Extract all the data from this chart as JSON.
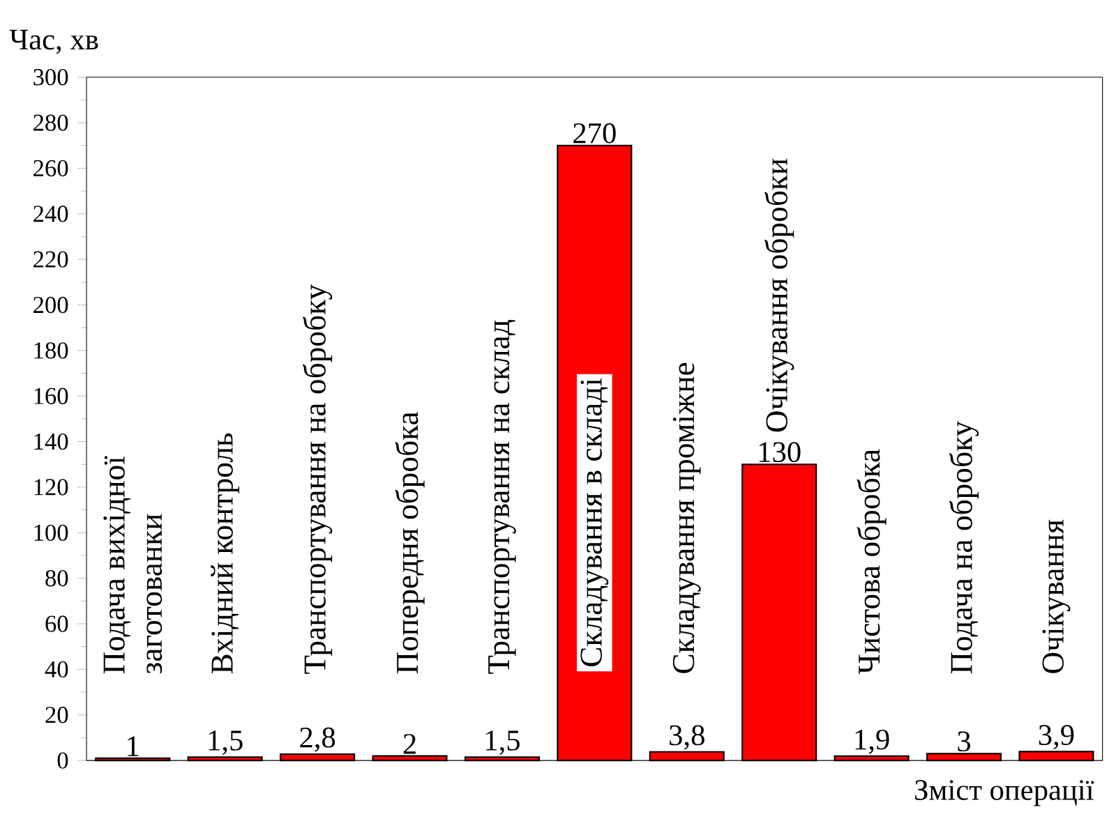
{
  "chart_data": {
    "type": "bar",
    "xlabel": "Зміст операції",
    "ylabel": "Час, хв",
    "categories": [
      "Подача вихідної заготованки",
      "Вхідний контроль",
      "Транспортування на обробку",
      "Попередня обробка",
      "Транспортування на склад",
      "Складування в складі",
      "Складування проміжне",
      "Очікування обробки",
      "Чистова обробка",
      "Подача на обробку",
      "Очікування"
    ],
    "values": [
      1,
      1.5,
      2.8,
      2,
      1.5,
      270,
      3.8,
      130,
      1.9,
      3,
      3.9
    ],
    "value_labels": [
      "1",
      "1,5",
      "2,8",
      "2",
      "1,5",
      "270",
      "3,8",
      "130",
      "1,9",
      "3",
      "3,9"
    ],
    "color": "#ff0000",
    "ylim": [
      0,
      300
    ],
    "yticks": [
      0,
      20,
      40,
      60,
      80,
      100,
      120,
      140,
      160,
      180,
      200,
      220,
      240,
      260,
      280,
      300
    ]
  }
}
